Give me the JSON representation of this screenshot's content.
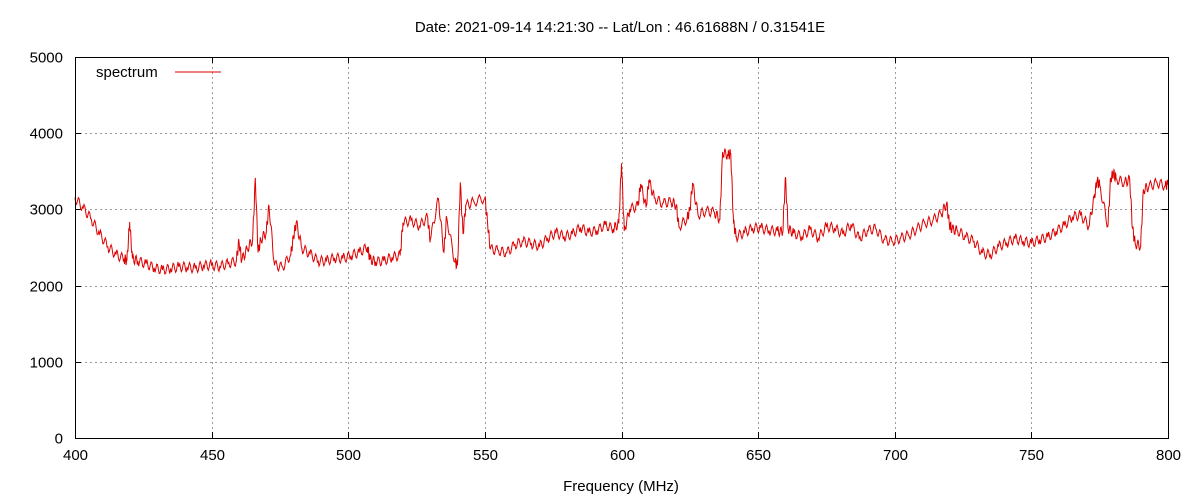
{
  "chart_data": {
    "type": "line",
    "title": "Date: 2021-09-14 14:21:30  --  Lat/Lon : 46.61688N / 0.31541E",
    "xlabel": "Frequency (MHz)",
    "ylabel": "",
    "xlim": [
      400,
      800
    ],
    "ylim": [
      0,
      5000
    ],
    "x_ticks": [
      400,
      450,
      500,
      550,
      600,
      650,
      700,
      750,
      800
    ],
    "y_ticks": [
      0,
      1000,
      2000,
      3000,
      4000,
      5000
    ],
    "grid": true,
    "legend_position": "top-left",
    "colors": {
      "series": "#dd0000",
      "grid": "#9a9a9a",
      "frame": "#000000"
    },
    "series": [
      {
        "name": "spectrum",
        "x": [
          400,
          403,
          406,
          409,
          412,
          415,
          418,
          419,
          420,
          421,
          423,
          426,
          429,
          432,
          435,
          438,
          441,
          444,
          447,
          450,
          453,
          456,
          459,
          460,
          461,
          463,
          465,
          466,
          467,
          468,
          470,
          471,
          473,
          476,
          479,
          480,
          481,
          483,
          486,
          489,
          492,
          495,
          498,
          501,
          504,
          507,
          508,
          510,
          513,
          516,
          519,
          520,
          523,
          526,
          529,
          530,
          533,
          535,
          536,
          539,
          540,
          541,
          542,
          543,
          546,
          550,
          551,
          552,
          555,
          558,
          561,
          564,
          567,
          570,
          573,
          576,
          579,
          582,
          585,
          588,
          591,
          594,
          597,
          599,
          600,
          601,
          603,
          606,
          607,
          609,
          610,
          612,
          615,
          618,
          620,
          621,
          624,
          625,
          626,
          628,
          631,
          634,
          636,
          637,
          639,
          640,
          641,
          642,
          645,
          648,
          651,
          654,
          657,
          659,
          660,
          661,
          663,
          666,
          669,
          672,
          675,
          678,
          681,
          684,
          687,
          690,
          693,
          696,
          699,
          702,
          705,
          708,
          711,
          714,
          717,
          719,
          720,
          721,
          723,
          726,
          729,
          732,
          735,
          738,
          741,
          744,
          747,
          750,
          753,
          756,
          759,
          762,
          765,
          768,
          771,
          773,
          774,
          775,
          778,
          779,
          780,
          781,
          784,
          786,
          787,
          788,
          790,
          791,
          793,
          796,
          799,
          800
        ],
        "values": [
          3150,
          3020,
          2870,
          2680,
          2510,
          2410,
          2350,
          2330,
          2830,
          2360,
          2320,
          2290,
          2230,
          2210,
          2220,
          2250,
          2240,
          2230,
          2260,
          2270,
          2250,
          2290,
          2320,
          2580,
          2330,
          2480,
          2600,
          3410,
          2440,
          2600,
          2700,
          3050,
          2270,
          2240,
          2410,
          2650,
          2830,
          2490,
          2420,
          2320,
          2330,
          2360,
          2360,
          2390,
          2440,
          2500,
          2350,
          2310,
          2330,
          2370,
          2400,
          2820,
          2860,
          2780,
          2900,
          2600,
          3140,
          2440,
          2900,
          2310,
          2270,
          3350,
          2680,
          3050,
          3100,
          3150,
          2820,
          2480,
          2460,
          2430,
          2540,
          2580,
          2550,
          2520,
          2620,
          2700,
          2640,
          2680,
          2760,
          2700,
          2720,
          2800,
          2740,
          2820,
          3600,
          2720,
          3000,
          3050,
          3330,
          3030,
          3380,
          3150,
          3080,
          3100,
          3060,
          2770,
          2880,
          2990,
          3340,
          2930,
          2980,
          2960,
          2870,
          3750,
          3710,
          3730,
          2820,
          2640,
          2700,
          2750,
          2760,
          2720,
          2720,
          2700,
          3420,
          2740,
          2690,
          2640,
          2740,
          2620,
          2780,
          2750,
          2680,
          2800,
          2620,
          2720,
          2750,
          2600,
          2580,
          2620,
          2660,
          2740,
          2820,
          2860,
          2940,
          3080,
          2800,
          2740,
          2720,
          2640,
          2580,
          2430,
          2400,
          2520,
          2560,
          2620,
          2580,
          2560,
          2600,
          2640,
          2710,
          2790,
          2900,
          2930,
          2780,
          3150,
          3380,
          3320,
          2780,
          3400,
          3480,
          3400,
          3350,
          3390,
          2750,
          2550,
          2520,
          3260,
          3300,
          3350,
          3310,
          3330
        ]
      }
    ]
  }
}
